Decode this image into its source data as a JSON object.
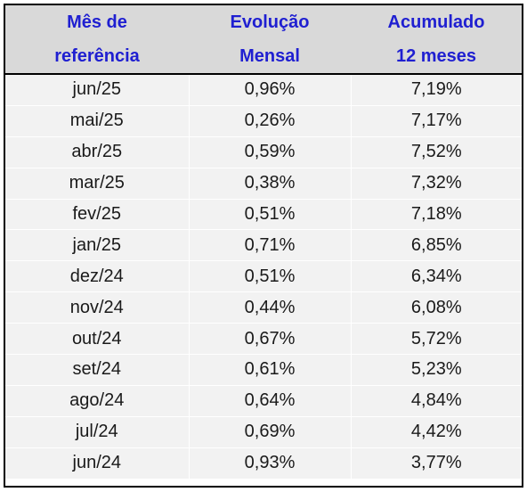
{
  "header": {
    "col1_line1": "Mês de",
    "col1_line2": "referência",
    "col2_line1": "Evolução",
    "col2_line2": "Mensal",
    "col3_line1": "Acumulado",
    "col3_line2": "12 meses"
  },
  "rows": [
    {
      "month": "jun/25",
      "monthly": "0,96%",
      "accum": "7,19%"
    },
    {
      "month": "mai/25",
      "monthly": "0,26%",
      "accum": "7,17%"
    },
    {
      "month": "abr/25",
      "monthly": "0,59%",
      "accum": "7,52%"
    },
    {
      "month": "mar/25",
      "monthly": "0,38%",
      "accum": "7,32%"
    },
    {
      "month": "fev/25",
      "monthly": "0,51%",
      "accum": "7,18%"
    },
    {
      "month": "jan/25",
      "monthly": "0,71%",
      "accum": "6,85%"
    },
    {
      "month": "dez/24",
      "monthly": "0,51%",
      "accum": "6,34%"
    },
    {
      "month": "nov/24",
      "monthly": "0,44%",
      "accum": "6,08%"
    },
    {
      "month": "out/24",
      "monthly": "0,67%",
      "accum": "5,72%"
    },
    {
      "month": "set/24",
      "monthly": "0,61%",
      "accum": "5,23%"
    },
    {
      "month": "ago/24",
      "monthly": "0,64%",
      "accum": "4,84%"
    },
    {
      "month": "jul/24",
      "monthly": "0,69%",
      "accum": "4,42%"
    },
    {
      "month": "jun/24",
      "monthly": "0,93%",
      "accum": "3,77%"
    }
  ],
  "colors": {
    "header_text": "#1f1fd1",
    "header_bg": "#d9d9d9",
    "body_bg": "#f2f2f2"
  }
}
